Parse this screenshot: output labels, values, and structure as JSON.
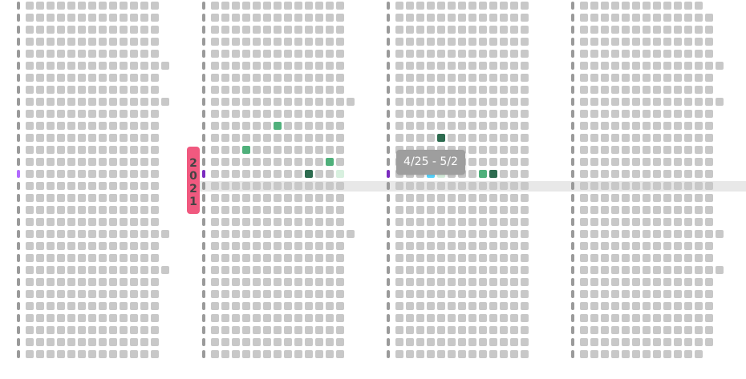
{
  "view": {
    "year_label": "2021",
    "tooltip_text": "4/25 - 5/2",
    "colors": {
      "empty_cell": "#c8c8c8",
      "row_marker": "#9a9a9a",
      "highlight_band": "#e8e8e8",
      "tooltip_bg": "#9e9e9e",
      "badge_bg": "#f0597f",
      "marker_violet": "#b36bff",
      "marker_purple": "#7b2cbf",
      "green_dark": "#2d6b4f",
      "green_mid": "#4fb07b",
      "green_light": "#d8f0df",
      "cyan": "#59d6ff"
    },
    "highlighted_cells": [
      {
        "column": 1,
        "row": 10,
        "cell": 6,
        "color_key": "green_mid"
      },
      {
        "column": 1,
        "row": 12,
        "cell": 3,
        "color_key": "green_mid"
      },
      {
        "column": 1,
        "row": 13,
        "cell": 11,
        "color_key": "green_mid"
      },
      {
        "column": 1,
        "row": 14,
        "cell": 9,
        "color_key": "green_dark"
      },
      {
        "column": 1,
        "row": 14,
        "cell": 12,
        "color_key": "green_light"
      },
      {
        "column": 2,
        "row": 11,
        "cell": 4,
        "color_key": "green_dark"
      },
      {
        "column": 2,
        "row": 14,
        "cell": 3,
        "color_key": "cyan"
      },
      {
        "column": 2,
        "row": 14,
        "cell": 4,
        "color_key": "green_light"
      },
      {
        "column": 2,
        "row": 14,
        "cell": 8,
        "color_key": "green_mid"
      },
      {
        "column": 2,
        "row": 14,
        "cell": 9,
        "color_key": "green_dark"
      }
    ],
    "marked_rows": [
      {
        "column": 0,
        "row": 14,
        "color_key": "marker_violet"
      },
      {
        "column": 1,
        "row": 14,
        "color_key": "marker_purple"
      },
      {
        "column": 2,
        "row": 14,
        "color_key": "marker_purple"
      }
    ]
  }
}
